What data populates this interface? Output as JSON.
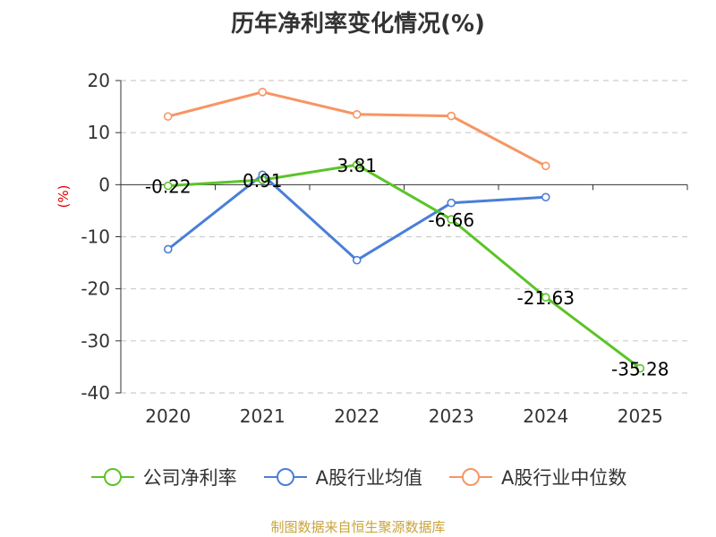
{
  "chart_data": {
    "type": "line",
    "title": "历年净利率变化情况(%)",
    "ylabel": "(%)",
    "x": [
      "2020",
      "2021",
      "2022",
      "2023",
      "2024",
      "2025"
    ],
    "ylim": [
      -40,
      20
    ],
    "yticks": [
      20,
      10,
      0,
      -10,
      -20,
      -30,
      -40
    ],
    "grid": true,
    "legend_position": "bottom",
    "series": [
      {
        "name": "公司净利率",
        "color": "#5bc428",
        "values": [
          -0.22,
          0.91,
          3.81,
          -6.66,
          -21.63,
          -35.28
        ],
        "labels": [
          "-0.22",
          "0.91",
          "3.81",
          "-6.66",
          "-21.63",
          "-35.28"
        ]
      },
      {
        "name": "A股行业均值",
        "color": "#4a7fd8",
        "values": [
          -12.4,
          1.9,
          -14.5,
          -3.5,
          -2.4,
          null
        ]
      },
      {
        "name": "A股行业中位数",
        "color": "#f79562",
        "values": [
          13.1,
          17.8,
          13.5,
          13.2,
          3.6,
          null
        ]
      }
    ]
  },
  "source": "制图数据来自恒生聚源数据库"
}
